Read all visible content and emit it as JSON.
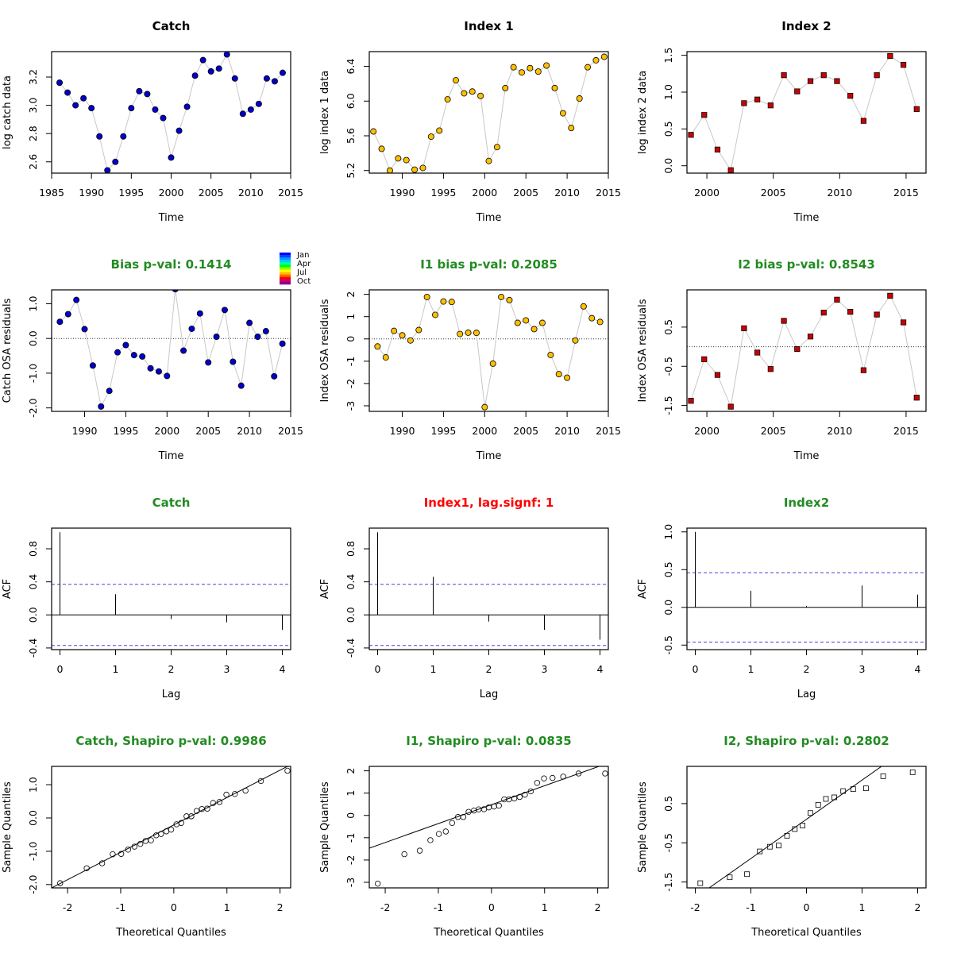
{
  "colors": {
    "catch": "#0000cc",
    "index1": "#ffc000",
    "index2": "#cc0000",
    "title_green": "#228b22",
    "title_black": "#000000",
    "title_red": "#ff0000",
    "connect_line": "#c8c8c8",
    "ci_line": "#4444dd"
  },
  "chart_data": [
    {
      "id": "catch-data",
      "type": "scatter",
      "title": "Catch",
      "title_color": "black",
      "xlabel": "Time",
      "ylabel": "log catch data",
      "marker": "circle",
      "fill": "#0000cc",
      "connect": true,
      "xlim": [
        1985,
        2015
      ],
      "ylim": [
        2.52,
        3.38
      ],
      "xticks": [
        1985,
        1990,
        1995,
        2000,
        2005,
        2010,
        2015
      ],
      "yticks": [
        2.6,
        2.8,
        3.0,
        3.2
      ],
      "ytick_labels": [
        "2.6",
        "2.8",
        "3.0",
        "3.2"
      ],
      "x": [
        1986,
        1987,
        1988,
        1989,
        1990,
        1991,
        1992,
        1993,
        1994,
        1995,
        1996,
        1997,
        1998,
        1999,
        2000,
        2001,
        2002,
        2003,
        2004,
        2005,
        2006,
        2007,
        2008,
        2009,
        2010,
        2011,
        2012,
        2013,
        2014
      ],
      "y": [
        3.16,
        3.09,
        3.0,
        3.05,
        2.98,
        2.78,
        2.54,
        2.6,
        2.78,
        2.98,
        3.1,
        3.08,
        2.97,
        2.91,
        2.63,
        2.82,
        2.99,
        3.21,
        3.32,
        3.24,
        3.26,
        3.36,
        3.19,
        2.94,
        2.97,
        3.01,
        3.19,
        3.17,
        3.23
      ]
    },
    {
      "id": "index1-data",
      "type": "scatter",
      "title": "Index 1",
      "title_color": "black",
      "xlabel": "Time",
      "ylabel": "log index 1 data",
      "marker": "circle",
      "fill": "#ffc000",
      "connect": true,
      "xlim": [
        1986,
        2015
      ],
      "ylim": [
        5.17,
        6.57
      ],
      "xticks": [
        1990,
        1995,
        2000,
        2005,
        2010,
        2015
      ],
      "yticks": [
        5.2,
        5.6,
        6.0,
        6.4
      ],
      "ytick_labels": [
        "5.2",
        "5.6",
        "6.0",
        "6.4"
      ],
      "x": [
        1986.5,
        1987.5,
        1988.5,
        1989.5,
        1990.5,
        1991.5,
        1992.5,
        1993.5,
        1994.5,
        1995.5,
        1996.5,
        1997.5,
        1998.5,
        1999.5,
        2000.5,
        2001.5,
        2002.5,
        2003.5,
        2004.5,
        2005.5,
        2006.5,
        2007.5,
        2008.5,
        2009.5,
        2010.5,
        2011.5,
        2012.5,
        2013.5,
        2014.5
      ],
      "y": [
        5.65,
        5.45,
        5.2,
        5.34,
        5.32,
        5.21,
        5.23,
        5.59,
        5.66,
        6.02,
        6.24,
        6.09,
        6.11,
        6.06,
        5.31,
        5.47,
        6.15,
        6.39,
        6.33,
        6.38,
        6.34,
        6.41,
        6.15,
        5.86,
        5.69,
        6.03,
        6.39,
        6.47,
        6.51
      ]
    },
    {
      "id": "index2-data",
      "type": "scatter",
      "title": "Index 2",
      "title_color": "black",
      "xlabel": "Time",
      "ylabel": "log index 2 data",
      "marker": "square",
      "fill": "#cc0000",
      "connect": true,
      "xlim": [
        1998.5,
        2016.5
      ],
      "ylim": [
        -0.1,
        1.55
      ],
      "xticks": [
        2000,
        2005,
        2010,
        2015
      ],
      "yticks": [
        0.0,
        0.5,
        1.0,
        1.5
      ],
      "ytick_labels": [
        "0.0",
        "0.5",
        "1.0",
        "1.5"
      ],
      "x": [
        1998.8,
        1999.8,
        2000.8,
        2001.8,
        2002.8,
        2003.8,
        2004.8,
        2005.8,
        2006.8,
        2007.8,
        2008.8,
        2009.8,
        2010.8,
        2011.8,
        2012.8,
        2013.8,
        2014.8,
        2015.8
      ],
      "y": [
        0.42,
        0.69,
        0.22,
        -0.06,
        0.85,
        0.9,
        0.82,
        1.23,
        1.01,
        1.15,
        1.23,
        1.15,
        0.95,
        0.61,
        1.23,
        1.49,
        1.37,
        0.77
      ]
    },
    {
      "id": "catch-osa",
      "type": "scatter",
      "title": "Bias p-val: 0.1414",
      "title_color": "green",
      "xlabel": "Time",
      "ylabel": "Catch OSA residuals",
      "marker": "circle",
      "fill": "#0000cc",
      "connect": true,
      "hline": 0,
      "month_legend": true,
      "xlim": [
        1986,
        2015
      ],
      "ylim": [
        -2.1,
        1.4
      ],
      "xticks": [
        1990,
        1995,
        2000,
        2005,
        2010,
        2015
      ],
      "yticks": [
        -2,
        -1,
        0,
        1
      ],
      "ytick_labels": [
        "-2.0",
        "-1.0",
        "0.0",
        "1.0"
      ],
      "x": [
        1987,
        1988,
        1989,
        1990,
        1991,
        1992,
        1993,
        1994,
        1995,
        1996,
        1997,
        1998,
        1999,
        2000,
        2001,
        2002,
        2003,
        2004,
        2005,
        2006,
        2007,
        2008,
        2009,
        2010,
        2011,
        2012,
        2013,
        2014
      ],
      "y": [
        0.48,
        0.7,
        1.11,
        0.27,
        -0.78,
        -1.96,
        -1.51,
        -0.4,
        -0.19,
        -0.48,
        -0.52,
        -0.86,
        -0.95,
        -1.08,
        1.42,
        -0.35,
        0.28,
        0.72,
        -0.69,
        0.05,
        0.82,
        -0.67,
        -1.36,
        0.45,
        0.05,
        0.21,
        -1.09,
        -0.15
      ]
    },
    {
      "id": "index1-osa",
      "type": "scatter",
      "title": "I1 bias p-val: 0.2085",
      "title_color": "green",
      "xlabel": "Time",
      "ylabel": "Index OSA residuals",
      "marker": "circle",
      "fill": "#ffc000",
      "connect": true,
      "hline": 0,
      "xlim": [
        1986,
        2015
      ],
      "ylim": [
        -3.25,
        2.2
      ],
      "xticks": [
        1990,
        1995,
        2000,
        2005,
        2010,
        2015
      ],
      "yticks": [
        -3,
        -2,
        -1,
        0,
        1,
        2
      ],
      "ytick_labels": [
        "-3",
        "-2",
        "-1",
        "0",
        "1",
        "2"
      ],
      "x": [
        1987,
        1988,
        1989,
        1990,
        1991,
        1992,
        1993,
        1994,
        1995,
        1996,
        1997,
        1998,
        1999,
        2000,
        2001,
        2002,
        2003,
        2004,
        2005,
        2006,
        2007,
        2008,
        2009,
        2010,
        2011,
        2012,
        2013,
        2014
      ],
      "y": [
        -0.34,
        -0.83,
        0.36,
        0.16,
        -0.07,
        0.4,
        1.88,
        1.08,
        1.68,
        1.66,
        0.22,
        0.28,
        0.27,
        -3.06,
        -1.11,
        1.88,
        1.74,
        0.72,
        0.83,
        0.44,
        0.72,
        -0.72,
        -1.58,
        -1.74,
        -0.07,
        1.46,
        0.93,
        0.76
      ]
    },
    {
      "id": "index2-osa",
      "type": "scatter",
      "title": "I2 bias p-val: 0.8543",
      "title_color": "green",
      "xlabel": "Time",
      "ylabel": "Index OSA residuals",
      "marker": "square",
      "fill": "#cc0000",
      "connect": true,
      "hline": 0,
      "xlim": [
        1998.5,
        2016.5
      ],
      "ylim": [
        -1.65,
        1.45
      ],
      "xticks": [
        2000,
        2005,
        2010,
        2015
      ],
      "yticks": [
        -1.5,
        -0.5,
        0.5
      ],
      "ytick_labels": [
        "-1.5",
        "-0.5",
        "0.5"
      ],
      "x": [
        1998.8,
        1999.8,
        2000.8,
        2001.8,
        2002.8,
        2003.8,
        2004.8,
        2005.8,
        2006.8,
        2007.8,
        2008.8,
        2009.8,
        2010.8,
        2011.8,
        2012.8,
        2013.8,
        2014.8,
        2015.8
      ],
      "y": [
        -1.38,
        -0.32,
        -0.72,
        -1.53,
        0.47,
        -0.15,
        -0.57,
        0.66,
        -0.06,
        0.26,
        0.87,
        1.2,
        0.89,
        -0.6,
        0.82,
        1.3,
        0.62,
        -1.3
      ]
    },
    {
      "id": "catch-acf",
      "type": "acf",
      "title": "Catch",
      "title_color": "green",
      "xlabel": "Lag",
      "ylabel": "ACF",
      "ci": 0.37,
      "xlim": [
        -0.15,
        4.15
      ],
      "ylim": [
        -0.42,
        1.05
      ],
      "xticks": [
        0,
        1,
        2,
        3,
        4
      ],
      "yticks": [
        -0.4,
        0.0,
        0.4,
        0.8
      ],
      "ytick_labels": [
        "-0.4",
        "0.0",
        "0.4",
        "0.8"
      ],
      "lags": [
        0,
        1,
        2,
        3,
        4
      ],
      "values": [
        1.0,
        0.25,
        -0.05,
        -0.09,
        -0.18
      ]
    },
    {
      "id": "index1-acf",
      "type": "acf",
      "title": "Index1, lag.signf: 1",
      "title_color": "red",
      "xlabel": "Lag",
      "ylabel": "ACF",
      "ci": 0.37,
      "xlim": [
        -0.15,
        4.15
      ],
      "ylim": [
        -0.42,
        1.05
      ],
      "xticks": [
        0,
        1,
        2,
        3,
        4
      ],
      "yticks": [
        -0.4,
        0.0,
        0.4,
        0.8
      ],
      "ytick_labels": [
        "-0.4",
        "0.0",
        "0.4",
        "0.8"
      ],
      "lags": [
        0,
        1,
        2,
        3,
        4
      ],
      "values": [
        1.0,
        0.46,
        -0.08,
        -0.18,
        -0.3
      ]
    },
    {
      "id": "index2-acf",
      "type": "acf",
      "title": "Index2",
      "title_color": "green",
      "xlabel": "Lag",
      "ylabel": "ACF",
      "ci": 0.46,
      "xlim": [
        -0.15,
        4.15
      ],
      "ylim": [
        -0.56,
        1.05
      ],
      "xticks": [
        0,
        1,
        2,
        3,
        4
      ],
      "yticks": [
        -0.5,
        0.0,
        0.5,
        1.0
      ],
      "ytick_labels": [
        "-0.5",
        "0.0",
        "0.5",
        "1.0"
      ],
      "lags": [
        0,
        1,
        2,
        3,
        4
      ],
      "values": [
        1.0,
        0.22,
        0.02,
        0.29,
        0.17
      ]
    },
    {
      "id": "catch-qq",
      "type": "qq",
      "title": "Catch, Shapiro p-val: 0.9986",
      "title_color": "green",
      "xlabel": "Theoretical Quantiles",
      "ylabel": "Sample Quantiles",
      "marker": "circle-open",
      "xlim": [
        -2.3,
        2.2
      ],
      "ylim": [
        -2.1,
        1.55
      ],
      "xticks": [
        -2,
        -1,
        0,
        1,
        2
      ],
      "yticks": [
        -2,
        -1,
        0,
        1
      ],
      "ytick_labels": [
        "-2.0",
        "-1.0",
        "0.0",
        "1.0"
      ],
      "line": [
        [
          -2.3,
          -2.1
        ],
        [
          2.2,
          1.6
        ]
      ],
      "x": [
        -2.14,
        -1.64,
        -1.35,
        -1.15,
        -0.99,
        -0.86,
        -0.74,
        -0.63,
        -0.53,
        -0.43,
        -0.33,
        -0.24,
        -0.14,
        -0.05,
        0.05,
        0.14,
        0.24,
        0.33,
        0.43,
        0.53,
        0.63,
        0.74,
        0.86,
        0.99,
        1.15,
        1.35,
        1.64,
        2.14
      ],
      "y": [
        -1.96,
        -1.51,
        -1.36,
        -1.09,
        -1.08,
        -0.95,
        -0.86,
        -0.78,
        -0.69,
        -0.67,
        -0.52,
        -0.48,
        -0.4,
        -0.35,
        -0.19,
        -0.15,
        0.05,
        0.05,
        0.21,
        0.27,
        0.28,
        0.45,
        0.48,
        0.7,
        0.72,
        0.82,
        1.11,
        1.42
      ]
    },
    {
      "id": "index1-qq",
      "type": "qq",
      "title": "I1, Shapiro p-val: 0.0835",
      "title_color": "green",
      "xlabel": "Theoretical Quantiles",
      "ylabel": "Sample Quantiles",
      "marker": "circle-open",
      "xlim": [
        -2.3,
        2.2
      ],
      "ylim": [
        -3.25,
        2.2
      ],
      "xticks": [
        -2,
        -1,
        0,
        1,
        2
      ],
      "yticks": [
        -3,
        -2,
        -1,
        0,
        1,
        2
      ],
      "ytick_labels": [
        "-3",
        "-2",
        "-1",
        "0",
        "1",
        "2"
      ],
      "line": [
        [
          -2.3,
          -1.47
        ],
        [
          2.2,
          2.35
        ]
      ],
      "x": [
        -2.14,
        -1.64,
        -1.35,
        -1.15,
        -0.99,
        -0.86,
        -0.74,
        -0.63,
        -0.53,
        -0.43,
        -0.33,
        -0.24,
        -0.14,
        -0.05,
        0.05,
        0.14,
        0.24,
        0.33,
        0.43,
        0.53,
        0.63,
        0.74,
        0.86,
        0.99,
        1.15,
        1.35,
        1.64,
        2.14
      ],
      "y": [
        -3.06,
        -1.74,
        -1.58,
        -1.11,
        -0.83,
        -0.72,
        -0.34,
        -0.07,
        -0.07,
        0.16,
        0.22,
        0.27,
        0.28,
        0.36,
        0.4,
        0.44,
        0.72,
        0.72,
        0.76,
        0.83,
        0.93,
        1.08,
        1.46,
        1.66,
        1.68,
        1.74,
        1.88,
        1.88
      ]
    },
    {
      "id": "index2-qq",
      "type": "qq",
      "title": "I2, Shapiro p-val: 0.2802",
      "title_color": "green",
      "xlabel": "Theoretical Quantiles",
      "ylabel": "Sample Quantiles",
      "marker": "square-open",
      "xlim": [
        -2.15,
        2.15
      ],
      "ylim": [
        -1.65,
        1.45
      ],
      "xticks": [
        -2,
        -1,
        0,
        1,
        2
      ],
      "yticks": [
        -1.5,
        -0.5,
        0.5
      ],
      "ytick_labels": [
        "-1.5",
        "-0.5",
        "0.5"
      ],
      "line": [
        [
          -1.75,
          -1.65
        ],
        [
          1.35,
          1.45
        ]
      ],
      "x": [
        -1.91,
        -1.38,
        -1.07,
        -0.84,
        -0.66,
        -0.5,
        -0.35,
        -0.21,
        -0.07,
        0.07,
        0.21,
        0.35,
        0.5,
        0.66,
        0.84,
        1.07,
        1.38,
        1.91
      ],
      "y": [
        -1.53,
        -1.38,
        -1.3,
        -0.72,
        -0.6,
        -0.57,
        -0.32,
        -0.15,
        -0.06,
        0.26,
        0.47,
        0.62,
        0.66,
        0.82,
        0.87,
        0.89,
        1.2,
        1.3
      ]
    }
  ],
  "month_legend": {
    "labels": [
      "Jan",
      "Apr",
      "Jul",
      "Oct"
    ],
    "colors": [
      "#0000ff",
      "#0044ff",
      "#0099ff",
      "#00ccff",
      "#00ffaa",
      "#00ff00",
      "#88ff00",
      "#ffff00",
      "#ffbb00",
      "#ff6600",
      "#ff0000",
      "#cc0066",
      "#880099"
    ]
  }
}
